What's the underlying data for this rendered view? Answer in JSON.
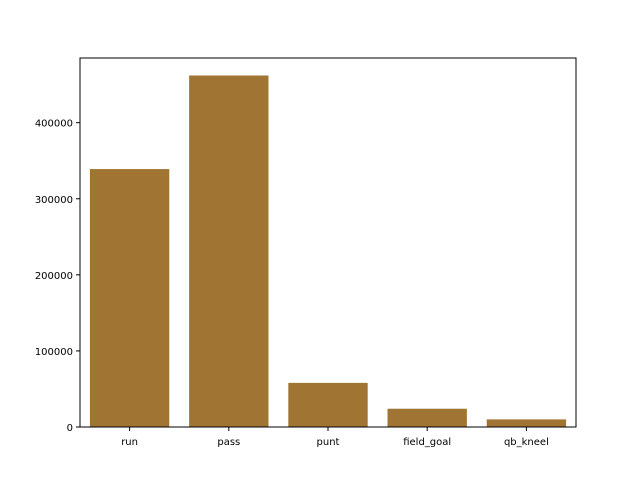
{
  "chart_data": {
    "type": "bar",
    "categories": [
      "run",
      "pass",
      "punt",
      "field_goal",
      "qb_kneel"
    ],
    "values": [
      339000,
      462000,
      58000,
      24000,
      10000
    ],
    "title": "",
    "xlabel": "",
    "ylabel": "",
    "ylim": [
      0,
      485000
    ],
    "yticks": [
      0,
      100000,
      200000,
      300000,
      400000
    ],
    "ytick_labels": [
      "0",
      "100000",
      "200000",
      "300000",
      "400000"
    ],
    "bar_color": "#a07432",
    "grid": false,
    "legend": "none"
  }
}
